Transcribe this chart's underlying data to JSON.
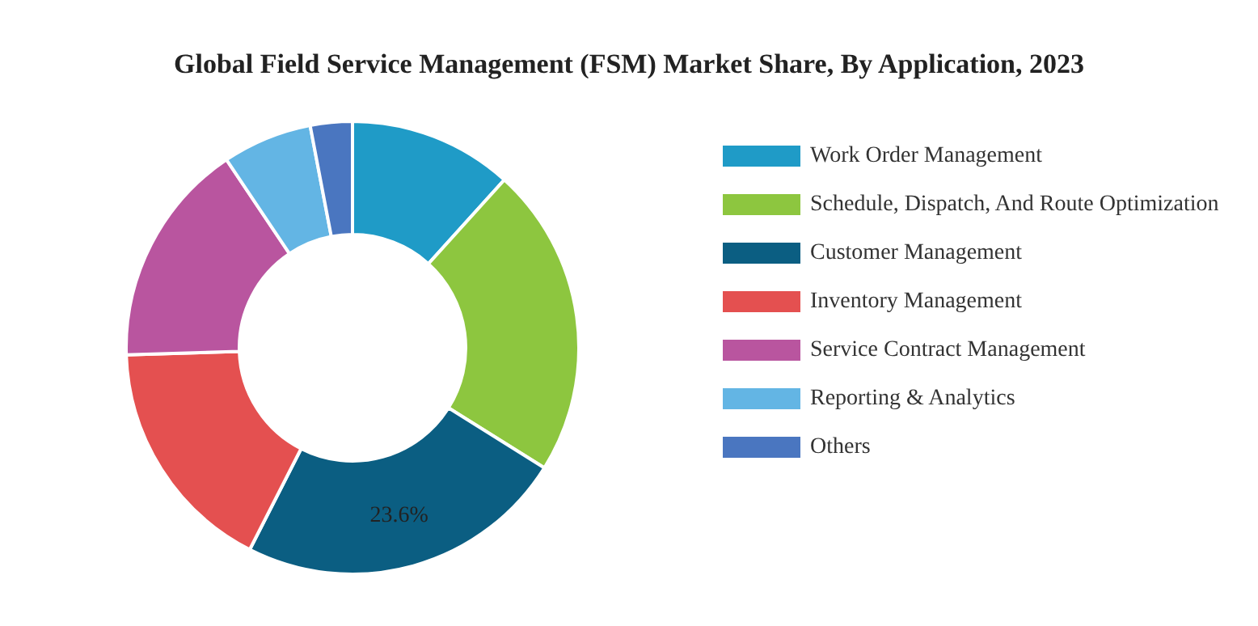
{
  "chart_data": {
    "type": "donut",
    "title": "Global Field Service Management (FSM) Market Share, By Application, 2023",
    "categories": [
      "Work Order Management",
      "Schedule, Dispatch, And Route Optimization",
      "Customer Management",
      "Inventory Management",
      "Service Contract Management",
      "Reporting & Analytics",
      "Others"
    ],
    "values": [
      11.7,
      22.2,
      23.6,
      17.0,
      16.1,
      6.4,
      3.0
    ],
    "colors": [
      "#1f9bc7",
      "#8dc63f",
      "#0b5e82",
      "#e45050",
      "#b9559f",
      "#63b5e4",
      "#4a76c0"
    ],
    "value_labels": [
      null,
      null,
      "23.6%",
      null,
      null,
      null,
      null
    ],
    "legend": "right"
  }
}
